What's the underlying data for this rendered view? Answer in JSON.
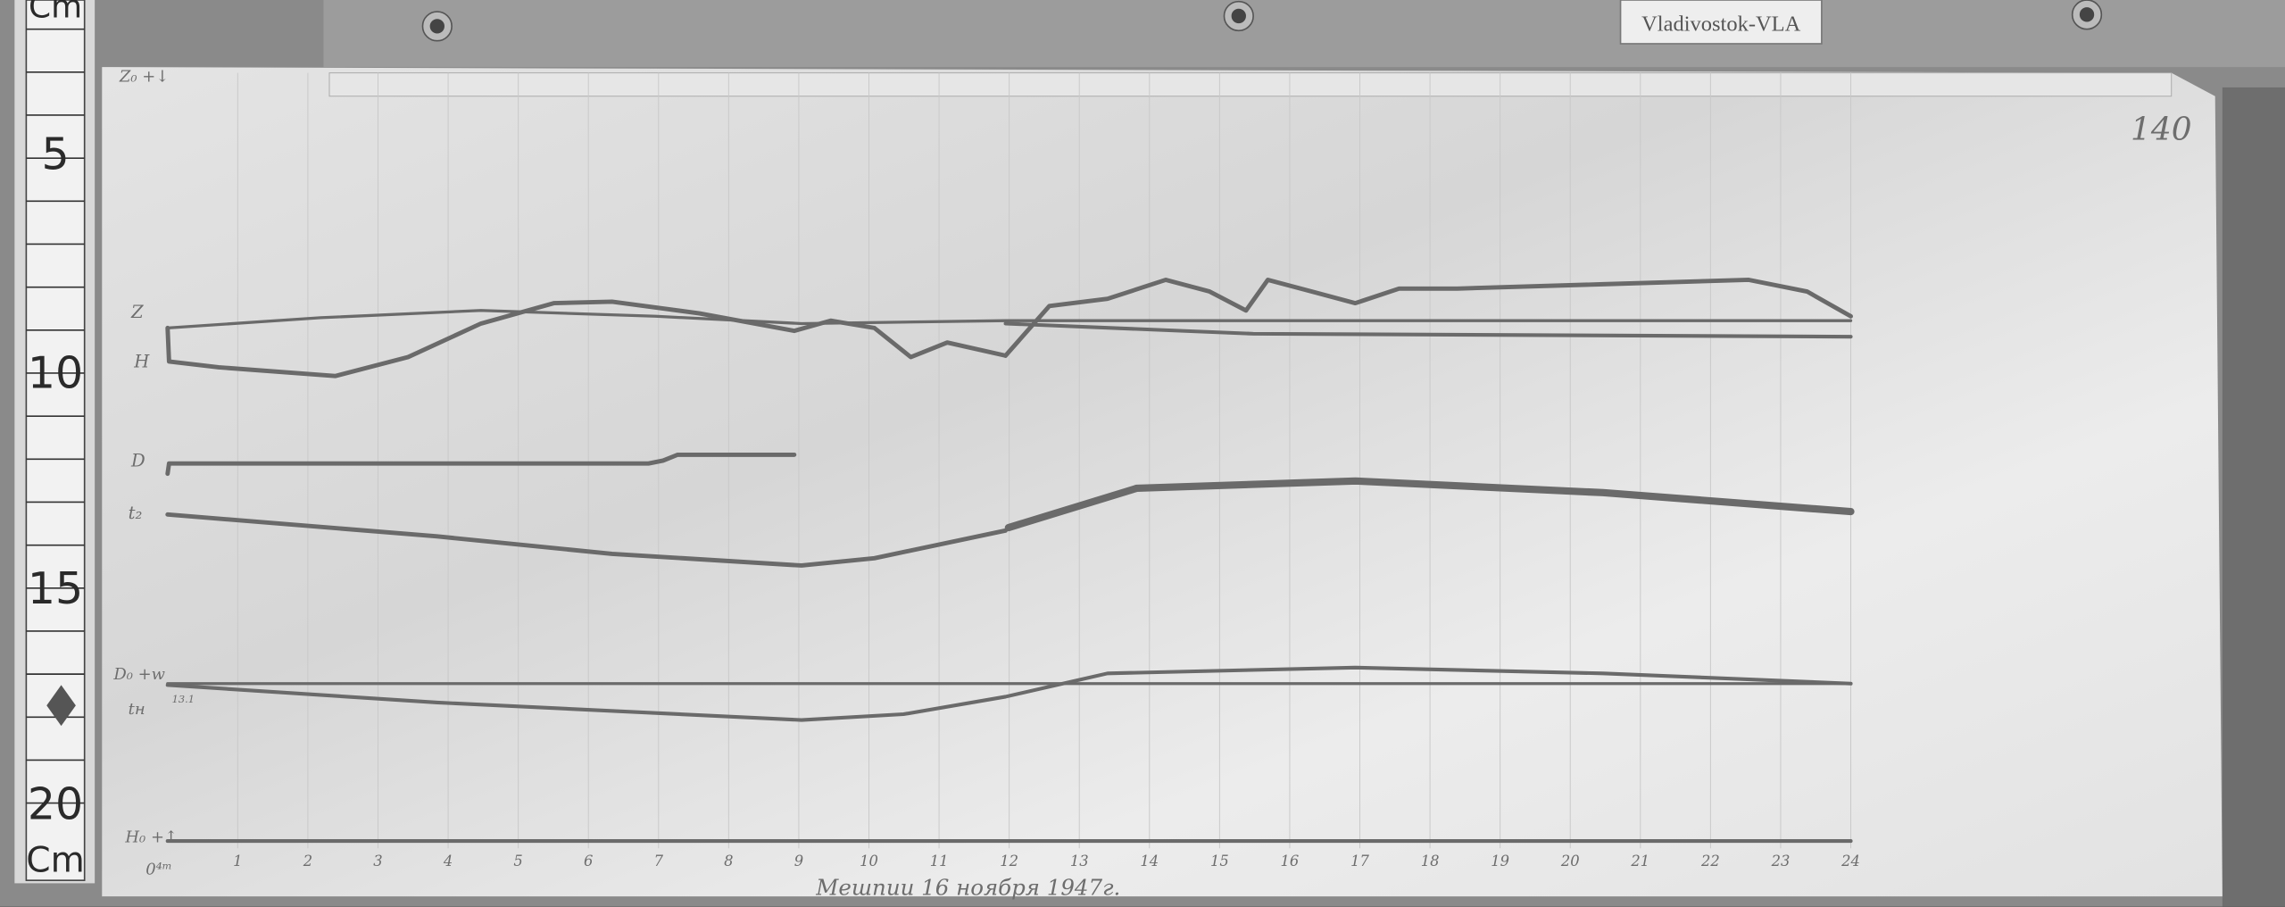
{
  "station_label": "Vladivostok-VLA",
  "sheet_number": "140",
  "ruler": {
    "unit_top": "Cm",
    "unit_bottom": "Cm",
    "marks": [
      "5",
      "10",
      "15",
      "20"
    ]
  },
  "trace_labels": {
    "z0": "Z₀ +↓",
    "z": "Z",
    "h": "H",
    "d": "D",
    "t2": "t₂",
    "d0": "D₀ +w",
    "tn": "tн",
    "d0_value": "13.1",
    "h0": "H₀ +↑"
  },
  "hour_axis": {
    "start_label": "0⁴ᵐ",
    "ticks": [
      "1",
      "2",
      "3",
      "4",
      "5",
      "6",
      "7",
      "8",
      "9",
      "10",
      "11",
      "12",
      "13",
      "14",
      "15",
      "16",
      "17",
      "18",
      "19",
      "20",
      "21",
      "22",
      "23",
      "24"
    ]
  },
  "caption": "Мешпии 16 ноября 1947г.",
  "colors": {
    "paper": "#ebebeb",
    "board": "#7a7a7a",
    "trace": "#6a6a6a"
  }
}
